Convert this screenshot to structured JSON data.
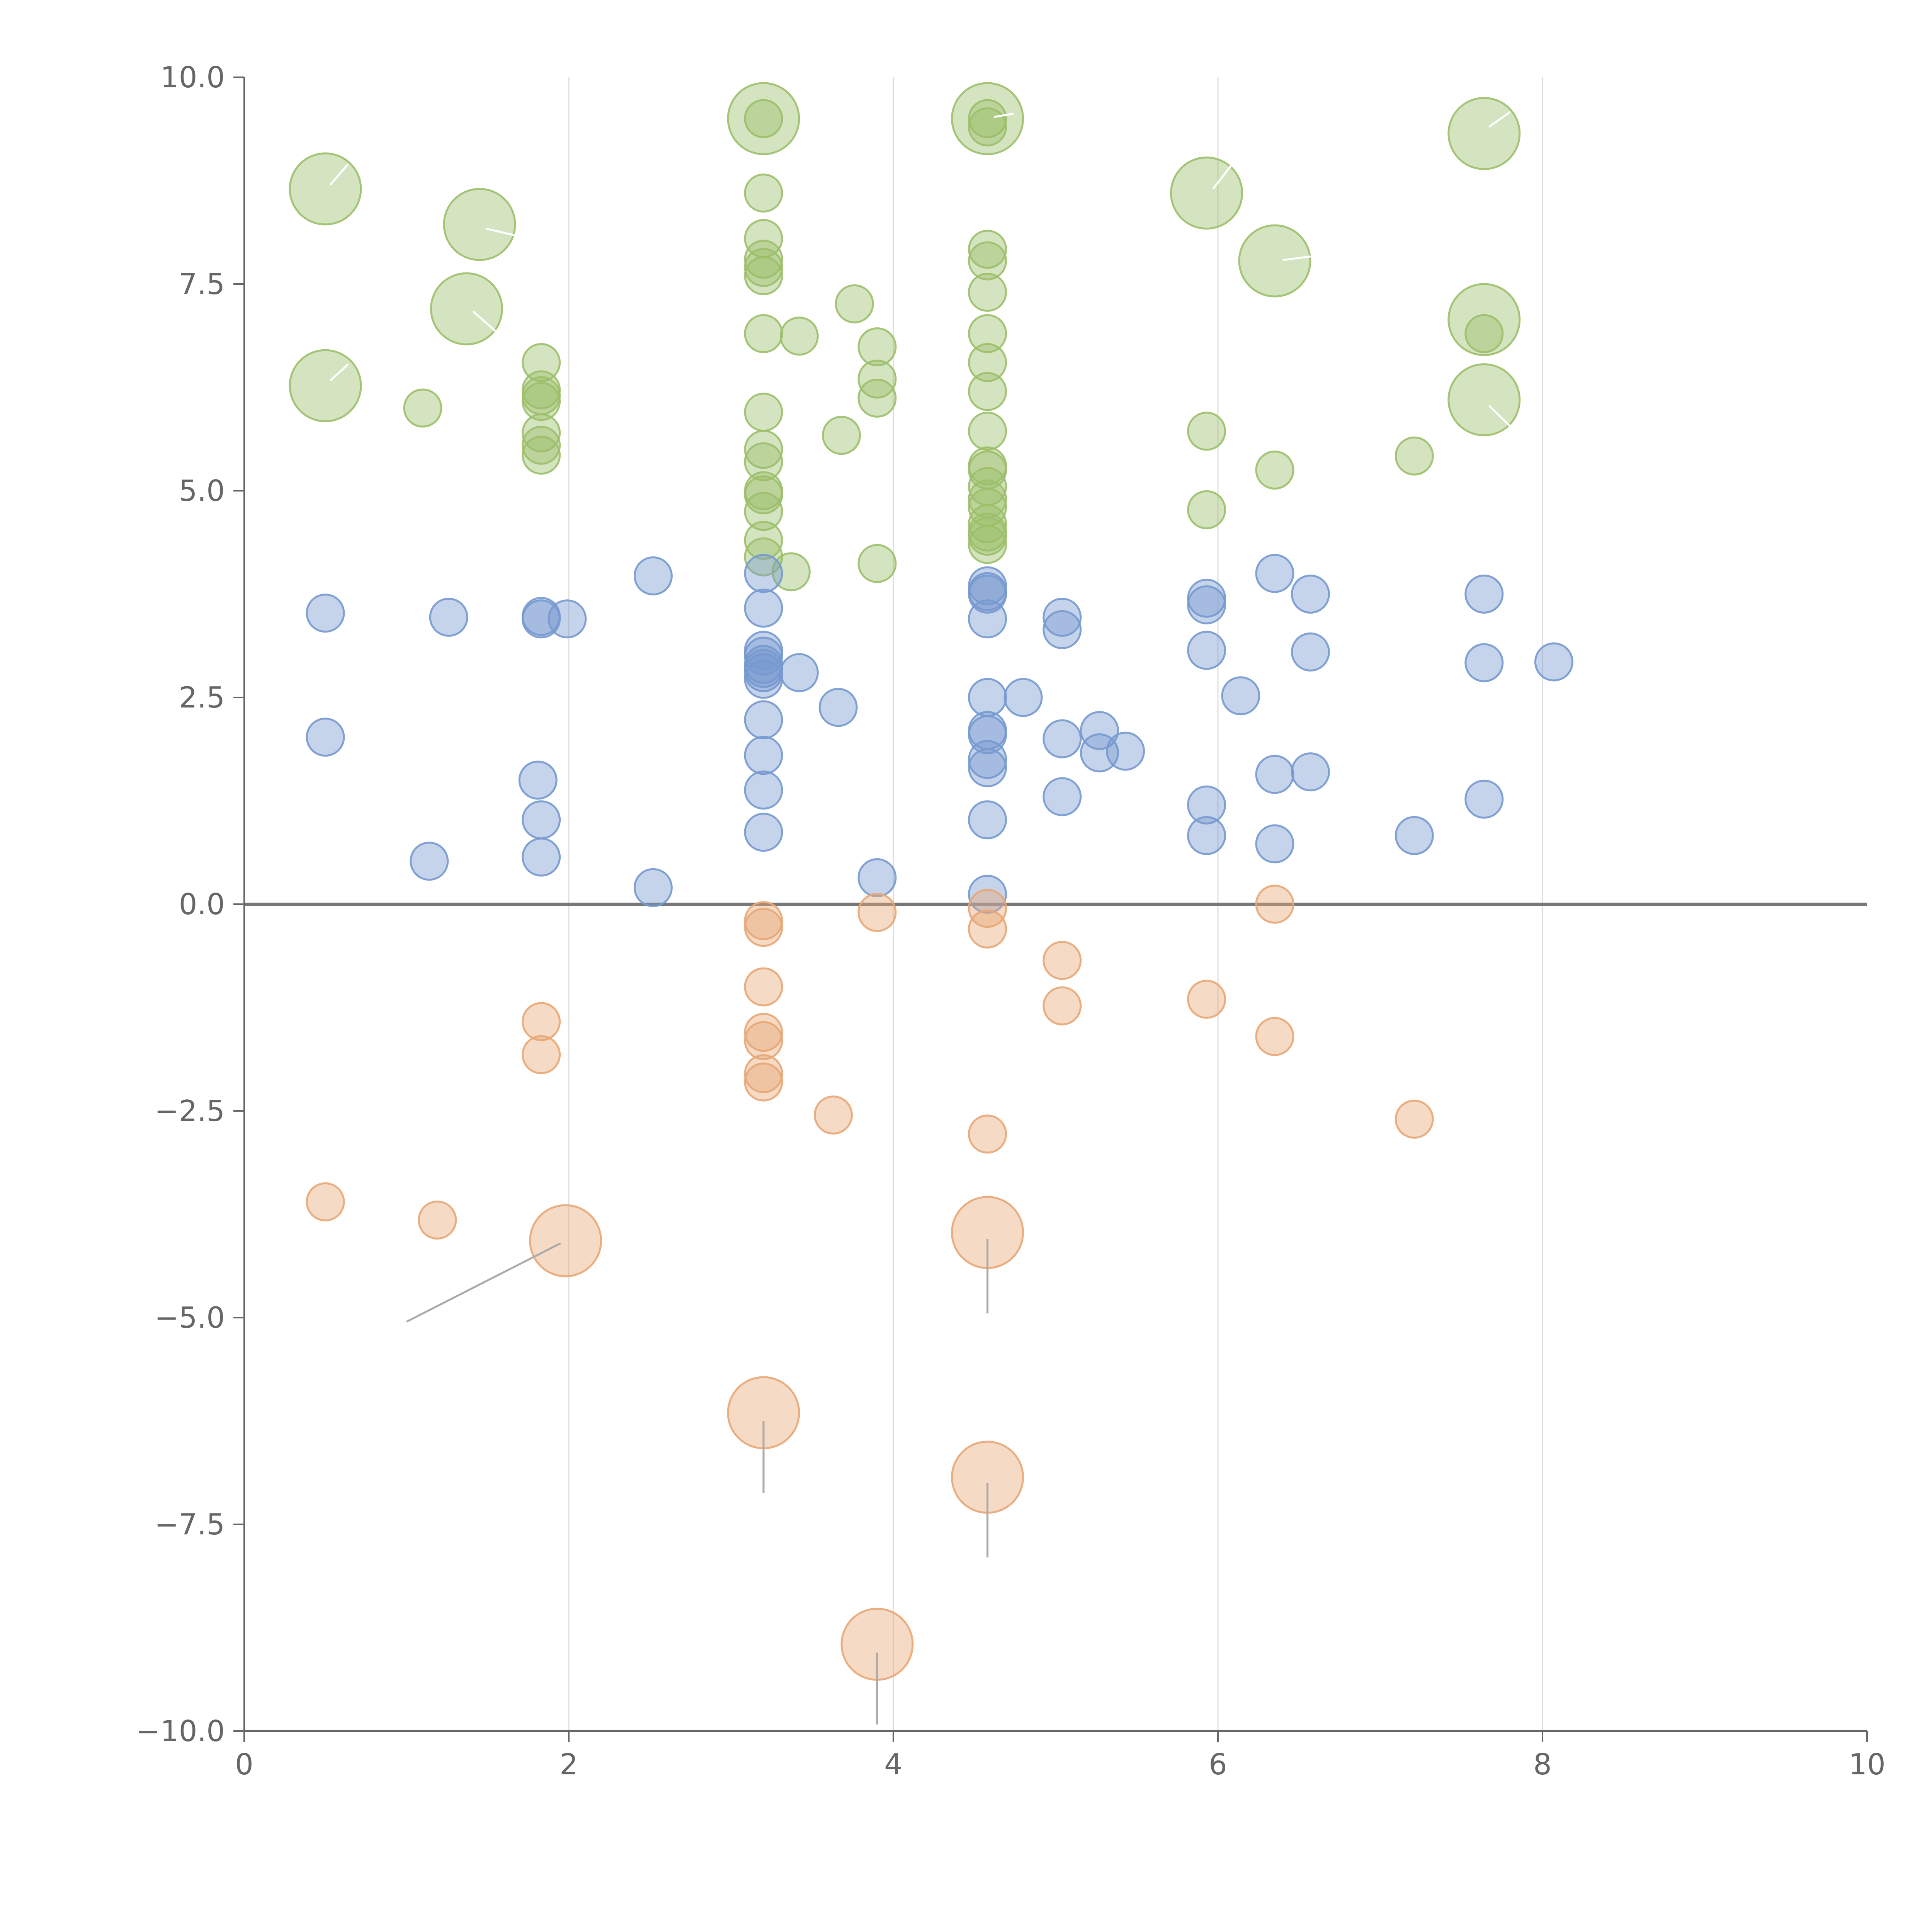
{
  "chart_data": {
    "type": "scatter",
    "title": "",
    "xlabel": "",
    "ylabel": "",
    "xlim": [
      0,
      10
    ],
    "ylim": [
      -10,
      10
    ],
    "xticks": [
      "0",
      "2",
      "4",
      "6",
      "8",
      "10"
    ],
    "yticks": [
      "10.0",
      "7.5",
      "5.0",
      "2.5",
      "0.0",
      "−2.5",
      "−5.0",
      "−7.5",
      "−10.0"
    ],
    "x_gridlines": [
      2,
      4,
      6,
      8
    ],
    "zero_line": 0,
    "colors": {
      "green": "#9cbf6a",
      "blue": "#7699cf",
      "orange": "#e8a674"
    },
    "series": [
      {
        "color": "green",
        "size": "small",
        "points": [
          [
            3.2,
            9.5
          ],
          [
            3.2,
            8.6
          ],
          [
            3.2,
            8.05
          ],
          [
            3.2,
            7.8
          ],
          [
            3.2,
            7.7
          ],
          [
            3.2,
            7.6
          ],
          [
            3.2,
            6.9
          ],
          [
            3.2,
            5.95
          ],
          [
            3.2,
            5.5
          ],
          [
            3.2,
            5.35
          ],
          [
            3.2,
            5.0
          ],
          [
            3.2,
            4.95
          ],
          [
            3.2,
            4.75
          ],
          [
            3.2,
            4.4
          ],
          [
            3.2,
            4.2
          ],
          [
            3.42,
            6.87
          ],
          [
            3.37,
            4.02
          ],
          [
            3.68,
            5.67
          ],
          [
            3.76,
            7.26
          ],
          [
            3.9,
            6.74
          ],
          [
            3.9,
            6.35
          ],
          [
            3.9,
            6.12
          ],
          [
            3.9,
            4.12
          ],
          [
            4.58,
            9.5
          ],
          [
            4.58,
            9.4
          ],
          [
            4.58,
            7.92
          ],
          [
            4.58,
            7.78
          ],
          [
            4.58,
            7.4
          ],
          [
            4.58,
            6.9
          ],
          [
            4.58,
            6.55
          ],
          [
            4.58,
            6.2
          ],
          [
            4.58,
            5.72
          ],
          [
            4.58,
            5.3
          ],
          [
            4.58,
            5.25
          ],
          [
            4.58,
            5.05
          ],
          [
            4.58,
            4.9
          ],
          [
            4.58,
            4.8
          ],
          [
            4.58,
            4.6
          ],
          [
            4.58,
            4.5
          ],
          [
            4.58,
            4.45
          ],
          [
            4.58,
            4.35
          ],
          [
            1.1,
            6.0
          ],
          [
            1.83,
            6.55
          ],
          [
            1.83,
            6.22
          ],
          [
            1.83,
            6.15
          ],
          [
            1.83,
            6.08
          ],
          [
            1.83,
            5.7
          ],
          [
            1.83,
            5.55
          ],
          [
            1.83,
            5.43
          ],
          [
            5.93,
            5.72
          ],
          [
            5.93,
            4.77
          ],
          [
            6.35,
            5.25
          ],
          [
            7.21,
            5.42
          ],
          [
            7.64,
            6.9
          ]
        ]
      },
      {
        "color": "green",
        "size": "large",
        "points": [
          [
            0.5,
            8.65
          ],
          [
            0.5,
            6.27
          ],
          [
            1.45,
            8.22
          ],
          [
            1.37,
            7.2
          ],
          [
            3.2,
            9.5
          ],
          [
            4.58,
            9.5
          ],
          [
            5.93,
            8.6
          ],
          [
            6.35,
            7.78
          ],
          [
            7.64,
            9.32
          ],
          [
            7.64,
            7.07
          ],
          [
            7.64,
            6.1
          ]
        ]
      },
      {
        "color": "blue",
        "size": "small",
        "points": [
          [
            0.5,
            3.52
          ],
          [
            0.5,
            2.02
          ],
          [
            1.26,
            3.47
          ],
          [
            1.14,
            0.52
          ],
          [
            1.83,
            3.48
          ],
          [
            1.83,
            3.45
          ],
          [
            1.99,
            3.45
          ],
          [
            1.81,
            1.5
          ],
          [
            1.83,
            1.02
          ],
          [
            1.83,
            0.57
          ],
          [
            2.52,
            3.97
          ],
          [
            2.52,
            0.2
          ],
          [
            3.2,
            4.0
          ],
          [
            3.2,
            3.58
          ],
          [
            3.2,
            3.07
          ],
          [
            3.2,
            3.0
          ],
          [
            3.2,
            2.9
          ],
          [
            3.2,
            2.85
          ],
          [
            3.2,
            2.8
          ],
          [
            3.2,
            2.72
          ],
          [
            3.2,
            2.23
          ],
          [
            3.2,
            1.8
          ],
          [
            3.2,
            1.38
          ],
          [
            3.2,
            0.87
          ],
          [
            3.42,
            2.8
          ],
          [
            3.66,
            2.38
          ],
          [
            3.9,
            0.32
          ],
          [
            4.58,
            3.85
          ],
          [
            4.58,
            3.78
          ],
          [
            4.58,
            3.75
          ],
          [
            4.58,
            3.45
          ],
          [
            4.58,
            2.5
          ],
          [
            4.58,
            2.1
          ],
          [
            4.58,
            2.05
          ],
          [
            4.58,
            1.75
          ],
          [
            4.58,
            1.65
          ],
          [
            4.58,
            1.02
          ],
          [
            4.58,
            0.12
          ],
          [
            4.8,
            2.5
          ],
          [
            5.04,
            3.47
          ],
          [
            5.04,
            3.32
          ],
          [
            5.04,
            2.0
          ],
          [
            5.04,
            1.3
          ],
          [
            5.27,
            2.1
          ],
          [
            5.27,
            1.83
          ],
          [
            5.43,
            1.85
          ],
          [
            5.93,
            3.7
          ],
          [
            5.93,
            3.62
          ],
          [
            5.93,
            3.07
          ],
          [
            5.93,
            1.2
          ],
          [
            5.93,
            0.83
          ],
          [
            6.14,
            2.52
          ],
          [
            6.35,
            4.0
          ],
          [
            6.35,
            1.57
          ],
          [
            6.35,
            0.73
          ],
          [
            6.57,
            3.75
          ],
          [
            6.57,
            3.05
          ],
          [
            6.57,
            1.6
          ],
          [
            7.21,
            0.83
          ],
          [
            7.64,
            3.75
          ],
          [
            7.64,
            2.92
          ],
          [
            7.64,
            1.27
          ],
          [
            8.07,
            2.93
          ]
        ]
      },
      {
        "color": "orange",
        "size": "small",
        "points": [
          [
            0.5,
            -3.6
          ],
          [
            1.19,
            -3.82
          ],
          [
            1.83,
            -1.42
          ],
          [
            1.83,
            -1.82
          ],
          [
            3.2,
            -0.2
          ],
          [
            3.2,
            -0.28
          ],
          [
            3.2,
            -1.0
          ],
          [
            3.2,
            -1.55
          ],
          [
            3.2,
            -1.65
          ],
          [
            3.2,
            -2.05
          ],
          [
            3.2,
            -2.15
          ],
          [
            3.63,
            -2.55
          ],
          [
            3.9,
            -0.1
          ],
          [
            4.58,
            -0.05
          ],
          [
            4.58,
            -0.3
          ],
          [
            4.58,
            -2.78
          ],
          [
            5.04,
            -0.68
          ],
          [
            5.04,
            -1.23
          ],
          [
            5.93,
            -1.15
          ],
          [
            6.35,
            0.0
          ],
          [
            6.35,
            -1.6
          ],
          [
            7.21,
            -2.6
          ]
        ]
      },
      {
        "color": "orange",
        "size": "large",
        "points": [
          [
            1.98,
            -4.07
          ],
          [
            4.58,
            -3.97
          ],
          [
            3.2,
            -6.15
          ],
          [
            4.58,
            -6.93
          ],
          [
            3.9,
            -8.95
          ]
        ]
      }
    ],
    "leader_lines": [
      {
        "from": [
          1.95,
          -4.1
        ],
        "to": [
          1.0,
          -5.05
        ],
        "color": "#aaaaaa"
      },
      {
        "from": [
          4.58,
          -4.05
        ],
        "to": [
          4.58,
          -4.95
        ],
        "color": "#aaaaaa"
      },
      {
        "from": [
          3.2,
          -6.25
        ],
        "to": [
          3.2,
          -7.12
        ],
        "color": "#aaaaaa"
      },
      {
        "from": [
          4.58,
          -7.0
        ],
        "to": [
          4.58,
          -7.9
        ],
        "color": "#aaaaaa"
      },
      {
        "from": [
          3.9,
          -9.05
        ],
        "to": [
          3.9,
          -9.92
        ],
        "color": "#aaaaaa"
      },
      {
        "from": [
          0.53,
          8.7
        ],
        "to": [
          0.64,
          8.95
        ],
        "color": "#ffffff"
      },
      {
        "from": [
          0.53,
          6.33
        ],
        "to": [
          0.64,
          6.53
        ],
        "color": "#ffffff"
      },
      {
        "from": [
          1.49,
          8.17
        ],
        "to": [
          1.73,
          8.06
        ],
        "color": "#ffffff"
      },
      {
        "from": [
          1.41,
          7.17
        ],
        "to": [
          1.56,
          6.91
        ],
        "color": "#ffffff"
      },
      {
        "from": [
          4.62,
          9.52
        ],
        "to": [
          4.74,
          9.56
        ],
        "color": "#ffffff"
      },
      {
        "from": [
          5.97,
          8.65
        ],
        "to": [
          6.08,
          8.93
        ],
        "color": "#ffffff"
      },
      {
        "from": [
          6.4,
          7.79
        ],
        "to": [
          6.6,
          7.84
        ],
        "color": "#ffffff"
      },
      {
        "from": [
          7.67,
          9.4
        ],
        "to": [
          7.8,
          9.58
        ],
        "color": "#ffffff"
      },
      {
        "from": [
          7.67,
          6.03
        ],
        "to": [
          7.8,
          5.78
        ],
        "color": "#ffffff"
      }
    ]
  }
}
